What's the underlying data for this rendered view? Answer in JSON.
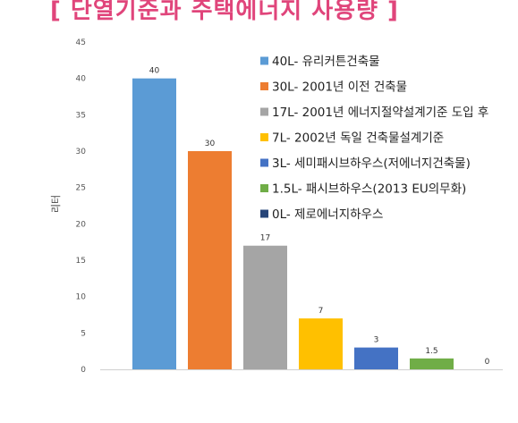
{
  "title": "[ 단열기준과 주택에너지 사용량 ]",
  "chart_data": {
    "type": "bar",
    "ylabel": "리터",
    "ylim": [
      0,
      45
    ],
    "yticks": [
      0,
      5,
      10,
      15,
      20,
      25,
      30,
      35,
      40,
      45
    ],
    "grid": false,
    "legend_position": "top-right",
    "categories": [
      "40L- 유리커튼건축물",
      "30L- 2001년 이전 건축물",
      "17L- 2001년 에너지절약설계기준 도입 후",
      "7L- 2002년 독일 건축물설계기준",
      "3L- 세미패시브하우스(저에너지건축물)",
      "1.5L- 패시브하우스(2013 EU의무화)",
      "0L- 제로에너지하우스"
    ],
    "values": [
      40,
      30,
      17,
      7,
      3,
      1.5,
      0
    ],
    "data_labels": [
      "40",
      "30",
      "17",
      "7",
      "3",
      "1.5",
      "0"
    ],
    "colors": [
      "#5b9bd5",
      "#ed7d31",
      "#a5a5a5",
      "#ffc000",
      "#4472c4",
      "#70ad47",
      "#264478"
    ]
  }
}
